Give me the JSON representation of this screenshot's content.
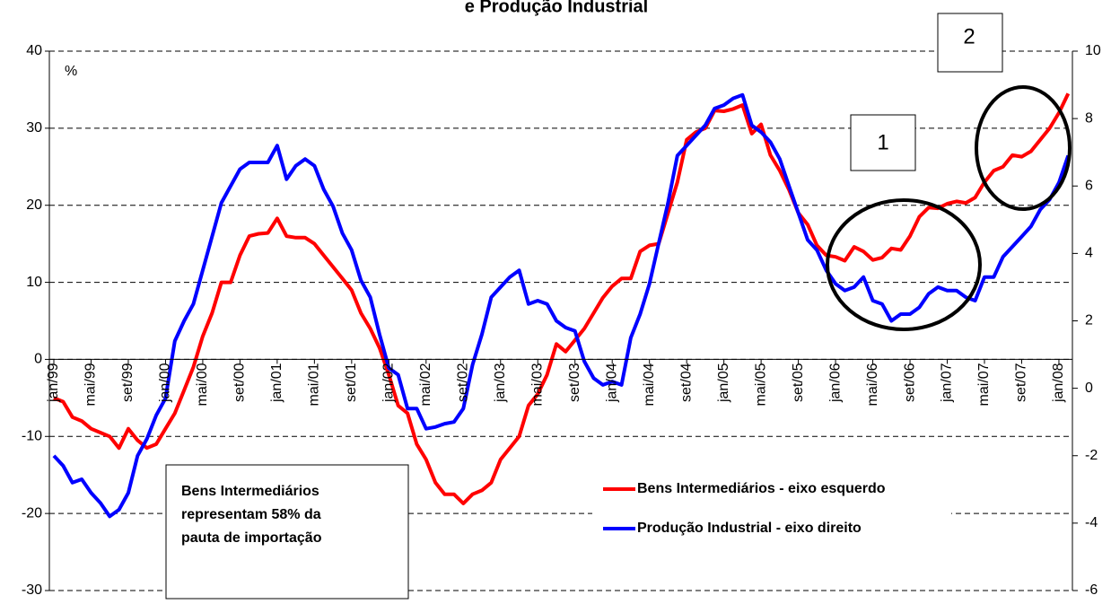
{
  "chart_data": {
    "type": "line",
    "title": "e Produção Industrial",
    "y_label": "%",
    "categories": [
      "jan/99",
      null,
      null,
      null,
      "mai/99",
      null,
      null,
      null,
      "set/99",
      null,
      null,
      null,
      "jan/00",
      null,
      null,
      null,
      "mai/00",
      null,
      null,
      null,
      "set/00",
      null,
      null,
      null,
      "jan/01",
      null,
      null,
      null,
      "mai/01",
      null,
      null,
      null,
      "set/01",
      null,
      null,
      null,
      "jan/02",
      null,
      null,
      null,
      "mai/02",
      null,
      null,
      null,
      "set/02",
      null,
      null,
      null,
      "jan/03",
      null,
      null,
      null,
      "mai/03",
      null,
      null,
      null,
      "set/03",
      null,
      null,
      null,
      "jan/04",
      null,
      null,
      null,
      "mai/04",
      null,
      null,
      null,
      "set/04",
      null,
      null,
      null,
      "jan/05",
      null,
      null,
      null,
      "mai/05",
      null,
      null,
      null,
      "set/05",
      null,
      null,
      null,
      "jan/06",
      null,
      null,
      null,
      "mai/06",
      null,
      null,
      null,
      "set/06",
      null,
      null,
      null,
      "jan/07",
      null,
      null,
      null,
      "mai/07",
      null,
      null,
      null,
      "set/07",
      null,
      null,
      null,
      "jan/08",
      null
    ],
    "series": [
      {
        "name": "Bens Intermediários - eixo esquerdo",
        "color": "#ff0000",
        "axis": "y",
        "values": [
          -5,
          -5.5,
          -7.5,
          -8,
          -9,
          -9.5,
          -10,
          -11.5,
          -9,
          -10.5,
          -11.5,
          -11,
          -9,
          -7,
          -4,
          -1,
          3,
          6,
          10,
          10,
          13.5,
          16,
          16.3,
          16.4,
          18.3,
          16,
          15.8,
          15.8,
          15,
          13.5,
          12,
          10.5,
          9,
          6,
          4,
          1.5,
          -2,
          -6,
          -7,
          -11,
          -13,
          -16,
          -17.5,
          -17.5,
          -18.7,
          -17.5,
          -17,
          -16,
          -13,
          -11.5,
          -10,
          -6,
          -4.5,
          -2,
          2,
          1,
          2.5,
          4,
          6,
          8,
          9.5,
          10.5,
          10.5,
          14,
          14.8,
          15,
          19,
          23,
          28.5,
          29.5,
          30,
          32.3,
          32.2,
          32.5,
          33,
          29.3,
          30.5,
          26.5,
          24.5,
          22,
          19,
          17.5,
          14.8,
          13.5,
          13.3,
          12.8,
          14.6,
          14,
          12.9,
          13.2,
          14.4,
          14.2,
          16,
          18.5,
          19.7,
          19.6,
          20.2,
          20.5,
          20.3,
          21,
          23,
          24.5,
          25,
          26.5,
          26.3,
          27,
          28.5,
          30,
          32,
          34.5
        ]
      },
      {
        "name": "Produção Industrial - eixo direito",
        "color": "#0000ff",
        "axis": "y2",
        "values": [
          -2,
          -2.3,
          -2.8,
          -2.7,
          -3.1,
          -3.4,
          -3.8,
          -3.6,
          -3.1,
          -2,
          -1.5,
          -0.8,
          -0.3,
          1.4,
          2,
          2.5,
          3.5,
          4.5,
          5.5,
          6,
          6.5,
          6.7,
          6.7,
          6.7,
          7.2,
          6.2,
          6.6,
          6.8,
          6.6,
          5.9,
          5.4,
          4.6,
          4.1,
          3.2,
          2.7,
          1.6,
          0.6,
          0.4,
          -0.6,
          -0.6,
          -1.2,
          -1.15,
          -1.05,
          -1,
          -0.6,
          0.7,
          1.6,
          2.7,
          3,
          3.3,
          3.5,
          2.5,
          2.6,
          2.5,
          2,
          1.8,
          1.7,
          0.8,
          0.3,
          0.1,
          0.2,
          0.1,
          1.5,
          2.2,
          3.1,
          4.3,
          5.5,
          6.9,
          7.2,
          7.5,
          7.8,
          8.3,
          8.4,
          8.6,
          8.7,
          7.8,
          7.6,
          7.3,
          6.8,
          6,
          5.2,
          4.4,
          4.1,
          3.5,
          3.1,
          2.9,
          3,
          3.3,
          2.6,
          2.5,
          2,
          2.2,
          2.2,
          2.4,
          2.8,
          3,
          2.9,
          2.9,
          2.7,
          2.6,
          3.3,
          3.3,
          3.9,
          4.2,
          4.5,
          4.8,
          5.3,
          5.6,
          6.1,
          6.9
        ]
      }
    ],
    "ylim": [
      -30,
      40
    ],
    "yticks": [
      -30,
      -20,
      -10,
      0,
      10,
      20,
      30,
      40
    ],
    "y2lim": [
      -6,
      10
    ],
    "y2ticks": [
      -6,
      -4,
      -2,
      0,
      2,
      4,
      6,
      8,
      10
    ],
    "grid": true,
    "annotations": {
      "box_lines": [
        "Bens Intermediários",
        "representam 58% da",
        "pauta de importação"
      ],
      "marker_1": "1",
      "marker_2": "2"
    }
  }
}
